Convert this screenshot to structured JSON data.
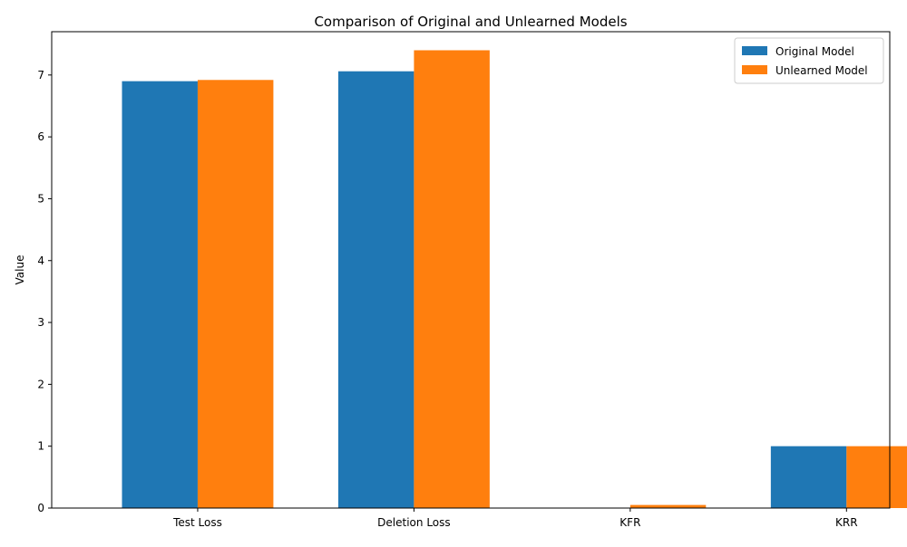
{
  "chart_data": {
    "type": "bar",
    "title": "Comparison of Original and Unlearned Models",
    "xlabel": "",
    "ylabel": "Value",
    "categories": [
      "Test Loss",
      "Deletion Loss",
      "KFR",
      "KRR"
    ],
    "series": [
      {
        "name": "Original Model",
        "color": "#1f77b4",
        "values": [
          6.9,
          7.06,
          0.0,
          1.0
        ]
      },
      {
        "name": "Unlearned Model",
        "color": "#ff7f0e",
        "values": [
          6.92,
          7.4,
          0.05,
          1.0
        ]
      }
    ],
    "ylim": [
      0,
      7.7
    ],
    "yticks": [
      0,
      1,
      2,
      3,
      4,
      5,
      6,
      7
    ],
    "grid": false,
    "legend_position": "top-right"
  }
}
